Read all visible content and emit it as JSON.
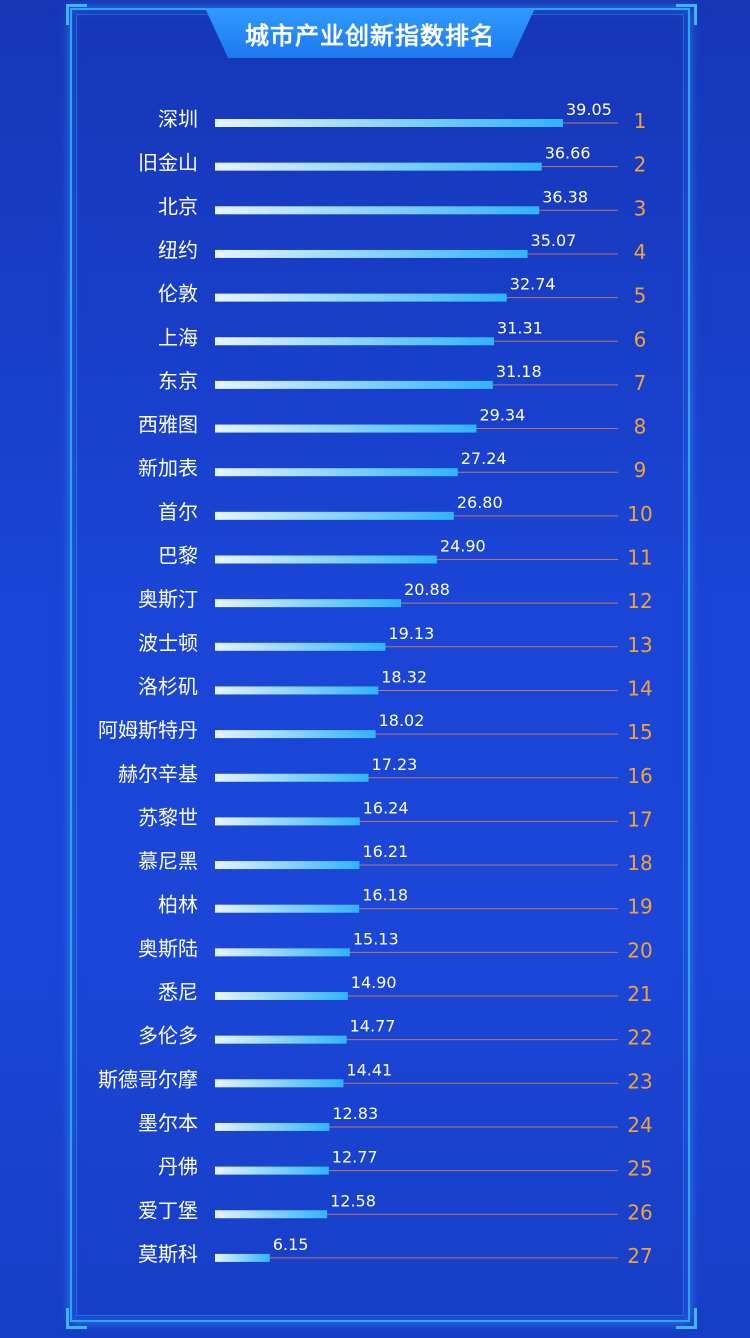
{
  "title": "城市产业创新指数排名",
  "colors": {
    "background": "#1a45d6",
    "bar_start": "#e6f4ff",
    "bar_end": "#2fb3ff",
    "rank": "#f2a23a",
    "baseline": "#e8844a",
    "frame": "#2aa5ff"
  },
  "chart_data": {
    "type": "bar",
    "orientation": "horizontal",
    "title": "城市产业创新指数排名",
    "xlim": [
      0,
      39.05
    ],
    "categories": [
      "深圳",
      "旧金山",
      "北京",
      "纽约",
      "伦敦",
      "上海",
      "东京",
      "西雅图",
      "新加表",
      "首尔",
      "巴黎",
      "奥斯汀",
      "波士顿",
      "洛杉矶",
      "阿姆斯特丹",
      "赫尔辛基",
      "苏黎世",
      "慕尼黑",
      "柏林",
      "奥斯陆",
      "悉尼",
      "多伦多",
      "斯德哥尔摩",
      "墨尔本",
      "丹佛",
      "爱丁堡",
      "莫斯科"
    ],
    "values": [
      39.05,
      36.66,
      36.38,
      35.07,
      32.74,
      31.31,
      31.18,
      29.34,
      27.24,
      26.8,
      24.9,
      20.88,
      19.13,
      18.32,
      18.02,
      17.23,
      16.24,
      16.21,
      16.18,
      15.13,
      14.9,
      14.77,
      14.41,
      12.83,
      12.77,
      12.58,
      6.15
    ],
    "value_labels": [
      "39.05",
      "36.66",
      "36.38",
      "35.07",
      "32.74",
      "31.31",
      "31.18",
      "29.34",
      "27.24",
      "26.80",
      "24.90",
      "20.88",
      "19.13",
      "18.32",
      "18.02",
      "17.23",
      "16.24",
      "16.21",
      "16.18",
      "15.13",
      "14.90",
      "14.77",
      "14.41",
      "12.83",
      "12.77",
      "12.58",
      "6.15"
    ],
    "ranks": [
      "1",
      "2",
      "3",
      "4",
      "5",
      "6",
      "7",
      "8",
      "9",
      "10",
      "11",
      "12",
      "13",
      "14",
      "15",
      "16",
      "17",
      "18",
      "19",
      "20",
      "21",
      "22",
      "23",
      "24",
      "25",
      "26",
      "27"
    ]
  }
}
